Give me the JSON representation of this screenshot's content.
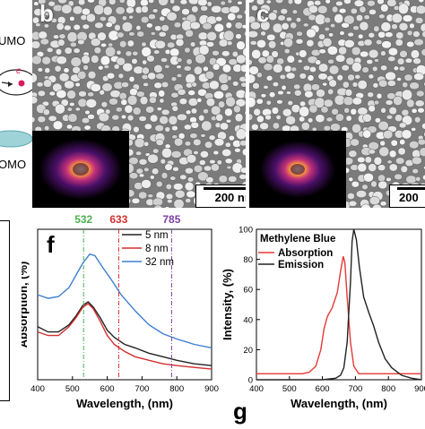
{
  "panel_a": {
    "lumo_text": "UMO",
    "homo_text": "OMO",
    "electron_label": "e"
  },
  "panel_b": {
    "letter": "b",
    "scale_text": "200 nm"
  },
  "panel_c": {
    "letter": "c",
    "scale_text": "200"
  },
  "panel_f": {
    "letter": "f",
    "laser_lines": [
      {
        "label": "532",
        "color": "#4caf50"
      },
      {
        "label": "633",
        "color": "#d32f2f"
      },
      {
        "label": "785",
        "color": "#7b3fa0"
      }
    ]
  },
  "panel_g": {
    "letter": "g"
  },
  "chart_data": [
    {
      "type": "line",
      "title": "",
      "xlabel": "Wavelength, (nm)",
      "ylabel": "Absorption, (%)",
      "xlim": [
        400,
        900
      ],
      "x_ticks": [
        400,
        500,
        600,
        700,
        800,
        900
      ],
      "vlines": [
        532,
        633,
        785
      ],
      "legend_placement": "top-right",
      "series": [
        {
          "name": "5 nm",
          "color": "#222222",
          "points": [
            [
              400,
              0.3
            ],
            [
              430,
              0.27
            ],
            [
              460,
              0.27
            ],
            [
              490,
              0.31
            ],
            [
              510,
              0.36
            ],
            [
              530,
              0.42
            ],
            [
              545,
              0.44
            ],
            [
              560,
              0.41
            ],
            [
              580,
              0.35
            ],
            [
              600,
              0.28
            ],
            [
              620,
              0.24
            ],
            [
              650,
              0.2
            ],
            [
              680,
              0.18
            ],
            [
              720,
              0.15
            ],
            [
              760,
              0.13
            ],
            [
              800,
              0.11
            ],
            [
              850,
              0.09
            ],
            [
              900,
              0.08
            ]
          ]
        },
        {
          "name": "8 nm",
          "color": "#d32f2f",
          "points": [
            [
              400,
              0.27
            ],
            [
              430,
              0.25
            ],
            [
              460,
              0.25
            ],
            [
              490,
              0.3
            ],
            [
              510,
              0.35
            ],
            [
              530,
              0.41
            ],
            [
              545,
              0.43
            ],
            [
              560,
              0.4
            ],
            [
              580,
              0.33
            ],
            [
              600,
              0.25
            ],
            [
              620,
              0.2
            ],
            [
              650,
              0.16
            ],
            [
              680,
              0.13
            ],
            [
              720,
              0.11
            ],
            [
              760,
              0.09
            ],
            [
              800,
              0.08
            ],
            [
              850,
              0.07
            ],
            [
              900,
              0.06
            ]
          ]
        },
        {
          "name": "32 nm",
          "color": "#3d7fd0",
          "points": [
            [
              400,
              0.48
            ],
            [
              430,
              0.46
            ],
            [
              460,
              0.47
            ],
            [
              490,
              0.52
            ],
            [
              510,
              0.59
            ],
            [
              530,
              0.66
            ],
            [
              550,
              0.71
            ],
            [
              565,
              0.7
            ],
            [
              585,
              0.64
            ],
            [
              610,
              0.57
            ],
            [
              640,
              0.48
            ],
            [
              680,
              0.39
            ],
            [
              720,
              0.31
            ],
            [
              760,
              0.26
            ],
            [
              800,
              0.23
            ],
            [
              850,
              0.2
            ],
            [
              900,
              0.18
            ]
          ]
        }
      ]
    },
    {
      "type": "line",
      "title": "Methylene Blue",
      "xlabel": "Wavelength, (nm)",
      "ylabel": "Intensity, (%)",
      "xlim": [
        400,
        900
      ],
      "ylim": [
        0,
        100
      ],
      "x_ticks": [
        400,
        500,
        600,
        700,
        800,
        900
      ],
      "y_ticks": [
        0,
        20,
        40,
        60,
        80,
        100
      ],
      "legend_placement": "top-left",
      "series": [
        {
          "name": "Absorption",
          "color": "#e53935",
          "points": [
            [
              400,
              4
            ],
            [
              450,
              4
            ],
            [
              500,
              4
            ],
            [
              540,
              4
            ],
            [
              560,
              5
            ],
            [
              580,
              9
            ],
            [
              595,
              20
            ],
            [
              605,
              34
            ],
            [
              615,
              42
            ],
            [
              630,
              48
            ],
            [
              645,
              58
            ],
            [
              655,
              72
            ],
            [
              663,
              82
            ],
            [
              668,
              78
            ],
            [
              675,
              55
            ],
            [
              685,
              25
            ],
            [
              695,
              9
            ],
            [
              710,
              4
            ],
            [
              750,
              4
            ],
            [
              800,
              4
            ],
            [
              850,
              4
            ],
            [
              900,
              4
            ]
          ]
        },
        {
          "name": "Emission",
          "color": "#222222",
          "points": [
            [
              400,
              0
            ],
            [
              500,
              0
            ],
            [
              600,
              0
            ],
            [
              640,
              1
            ],
            [
              655,
              3
            ],
            [
              665,
              8
            ],
            [
              675,
              25
            ],
            [
              685,
              65
            ],
            [
              690,
              92
            ],
            [
              695,
              100
            ],
            [
              703,
              93
            ],
            [
              712,
              75
            ],
            [
              725,
              55
            ],
            [
              740,
              45
            ],
            [
              755,
              36
            ],
            [
              770,
              25
            ],
            [
              790,
              14
            ],
            [
              810,
              8
            ],
            [
              840,
              3
            ],
            [
              870,
              1
            ],
            [
              900,
              0
            ]
          ]
        }
      ]
    }
  ]
}
